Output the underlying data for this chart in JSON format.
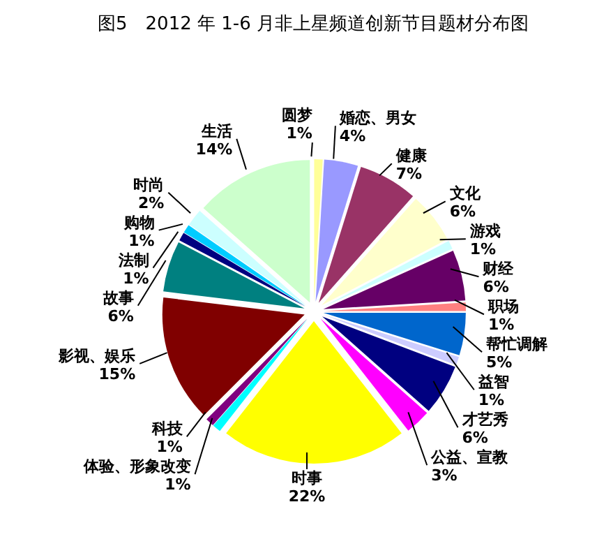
{
  "chart_data": {
    "type": "pie",
    "title": "图5　2012 年 1-6 月非上星频道创新节目题材分布图",
    "categories": [
      "圆梦",
      "婚恋、男女",
      "健康",
      "文化",
      "游戏",
      "财经",
      "职场",
      "帮忙调解",
      "益智",
      "才艺秀",
      "公益、宣教",
      "时事",
      "体验、形象改变",
      "科技",
      "影视、娱乐",
      "故事",
      "法制",
      "购物",
      "时尚",
      "生活"
    ],
    "values": [
      1,
      4,
      7,
      6,
      1,
      6,
      1,
      5,
      1,
      6,
      3,
      22,
      1,
      1,
      15,
      6,
      1,
      1,
      2,
      14
    ],
    "value_labels": [
      "1%",
      "4%",
      "7%",
      "6%",
      "1%",
      "6%",
      "1%",
      "5%",
      "1%",
      "6%",
      "3%",
      "22%",
      "1%",
      "1%",
      "15%",
      "6%",
      "1%",
      "1%",
      "2%",
      "14%"
    ],
    "colors": [
      "#ffff99",
      "#9999ff",
      "#993366",
      "#ffffcc",
      "#ccffff",
      "#660066",
      "#ff8080",
      "#0066cc",
      "#ccccff",
      "#000080",
      "#ff00ff",
      "#ffff00",
      "#00ffff",
      "#800080",
      "#800000",
      "#008080",
      "#000080",
      "#00ccff",
      "#ccffff",
      "#ccffcc"
    ],
    "legend": false
  }
}
